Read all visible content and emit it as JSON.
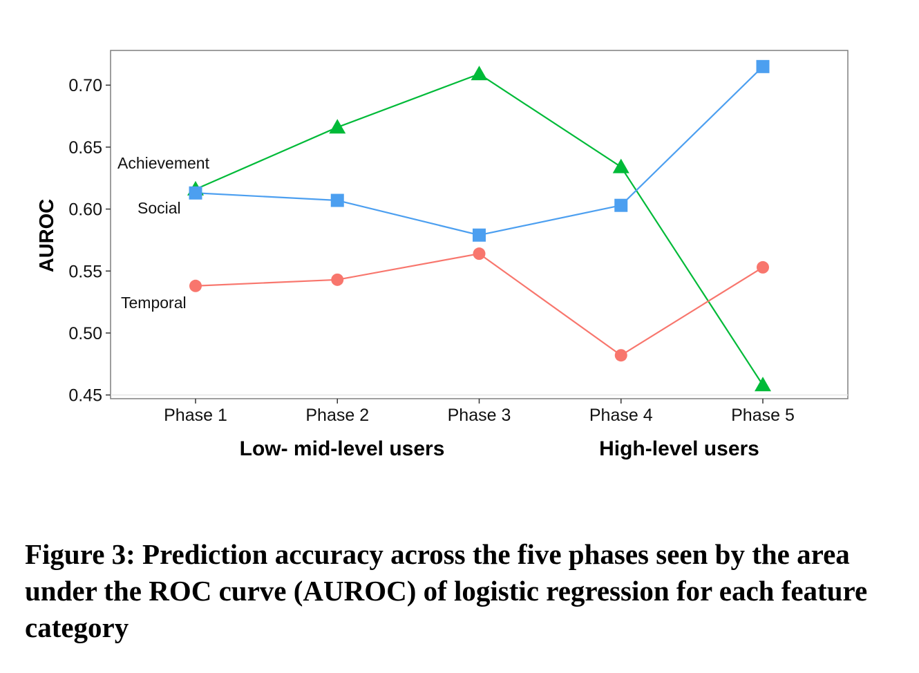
{
  "figure": {
    "caption": "Figure 3: Prediction accuracy across the five phases seen by the area under the ROC curve (AUROC) of logistic regression for each feature category"
  },
  "chart_data": {
    "type": "line",
    "categories": [
      "Phase 1",
      "Phase 2",
      "Phase 3",
      "Phase 4",
      "Phase 5"
    ],
    "ylabel": "AUROC",
    "xlabel": "",
    "ylim": [
      0.447,
      0.728
    ],
    "yticks": [
      0.45,
      0.5,
      0.55,
      0.6,
      0.65,
      0.7
    ],
    "ytick_labels": [
      "0.45",
      "0.50",
      "0.55",
      "0.60",
      "0.65",
      "0.70"
    ],
    "grid": false,
    "legend": "none",
    "group_labels": [
      {
        "text": "Low- mid-level users",
        "spans": [
          "Phase 1",
          "Phase 2",
          "Phase 3"
        ]
      },
      {
        "text": "High-level users",
        "spans": [
          "Phase 4",
          "Phase 5"
        ]
      }
    ],
    "series": [
      {
        "name": "Achievement",
        "marker": "triangle",
        "color": "#00ba38",
        "values": [
          0.616,
          0.666,
          0.709,
          0.634,
          0.458
        ]
      },
      {
        "name": "Social",
        "marker": "square",
        "color": "#4c9ff0",
        "values": [
          0.613,
          0.607,
          0.579,
          0.603,
          0.715
        ]
      },
      {
        "name": "Temporal",
        "marker": "circle",
        "color": "#f8766d",
        "values": [
          0.538,
          0.543,
          0.564,
          0.482,
          0.553
        ]
      }
    ]
  }
}
